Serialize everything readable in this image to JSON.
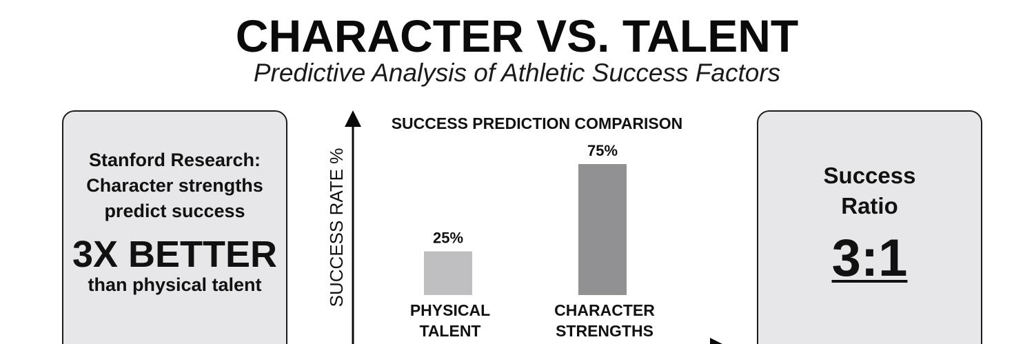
{
  "header": {
    "title": "CHARACTER VS. TALENT",
    "subtitle": "Predictive Analysis of Athletic Success Factors"
  },
  "left_card": {
    "line1": "Stanford Research:",
    "line2": "Character strengths",
    "line3": "predict success",
    "highlight": "3X BETTER",
    "line4": "than physical talent"
  },
  "right_card": {
    "label_line1": "Success",
    "label_line2": "Ratio",
    "ratio": "3:1"
  },
  "colors": {
    "card_background": "#e7e7e9",
    "bar_physical": "#bfbfc1",
    "bar_character": "#919194",
    "axis": "#0a0a0a"
  },
  "chart_data": {
    "type": "bar",
    "title": "SUCCESS PREDICTION COMPARISON",
    "ylabel": "SUCCESS RATE %",
    "xlabel": "",
    "categories": [
      [
        "PHYSICAL",
        "TALENT"
      ],
      [
        "CHARACTER",
        "STRENGTHS"
      ]
    ],
    "values": [
      25,
      75
    ],
    "value_labels": [
      "25%",
      "75%"
    ],
    "ylim": [
      0,
      100
    ],
    "grid": false
  }
}
